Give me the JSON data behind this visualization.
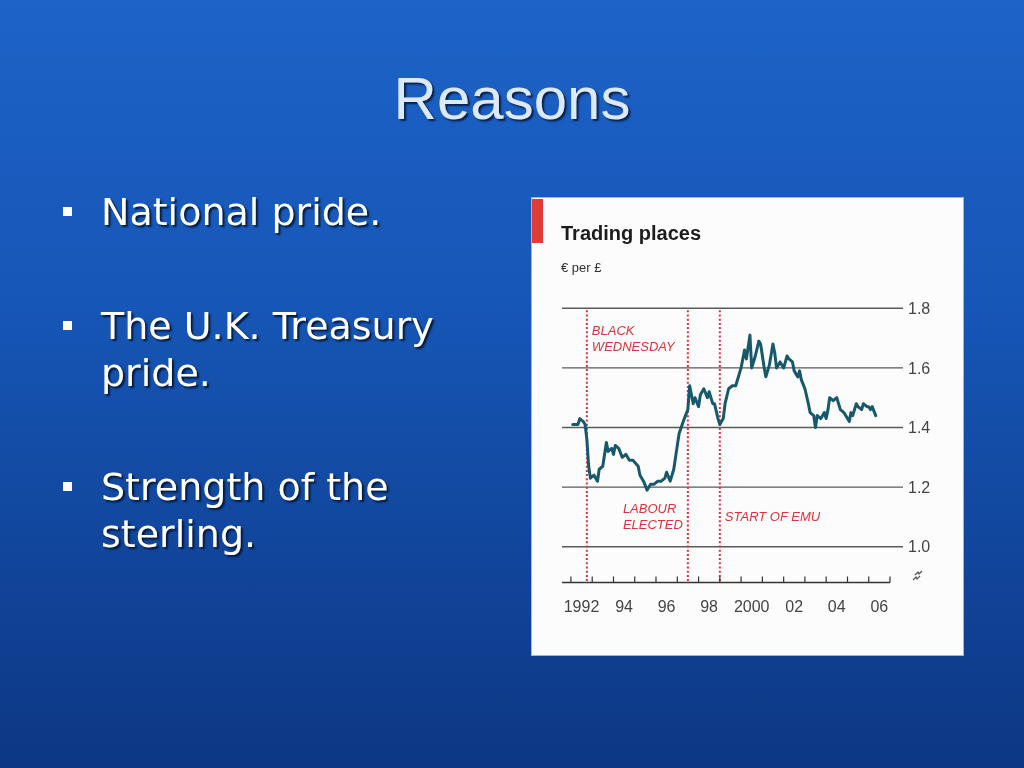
{
  "chart_data": {
    "type": "line",
    "title": "Trading places",
    "subtitle": "€ per £",
    "x": [
      "1992-02",
      "1992-05",
      "1992-06",
      "1992-08",
      "1992-09",
      "1992-10",
      "1992-11",
      "1992-12",
      "1993-02",
      "1993-04",
      "1993-05",
      "1993-07",
      "1993-09",
      "1993-10",
      "1993-12",
      "1994-01",
      "1994-02",
      "1994-04",
      "1994-06",
      "1994-08",
      "1994-10",
      "1994-12",
      "1995-03",
      "1995-04",
      "1995-06",
      "1995-08",
      "1995-10",
      "1995-12",
      "1996-02",
      "1996-04",
      "1996-06",
      "1996-07",
      "1996-09",
      "1996-11",
      "1997-01",
      "1997-02",
      "1997-05",
      "1997-07",
      "1997-08",
      "1997-10",
      "1997-11",
      "1998-01",
      "1998-02",
      "1998-04",
      "1998-06",
      "1998-07",
      "1998-09",
      "1998-10",
      "1998-12",
      "1999-01",
      "1999-03",
      "1999-04",
      "1999-06",
      "1999-08",
      "1999-10",
      "1999-12",
      "2000-01",
      "2000-03",
      "2000-04",
      "2000-06",
      "2000-07",
      "2000-09",
      "2000-11",
      "2000-12",
      "2001-02",
      "2001-03",
      "2001-05",
      "2001-07",
      "2001-08",
      "2001-09",
      "2001-11",
      "2002-01",
      "2002-03",
      "2002-04",
      "2002-06",
      "2002-07",
      "2002-09",
      "2002-10",
      "2002-11",
      "2003-01",
      "2003-03",
      "2003-04",
      "2003-06",
      "2003-07",
      "2003-08",
      "2003-10",
      "2003-12",
      "2004-01",
      "2004-02",
      "2004-03",
      "2004-05",
      "2004-07",
      "2004-08",
      "2004-09",
      "2004-11",
      "2004-12",
      "2005-02",
      "2005-03",
      "2005-04",
      "2005-06",
      "2005-07",
      "2005-09",
      "2005-10",
      "2005-12",
      "2006-01",
      "2006-02",
      "2006-03",
      "2006-05"
    ],
    "values": [
      1.41,
      1.41,
      1.43,
      1.42,
      1.41,
      1.36,
      1.27,
      1.23,
      1.24,
      1.22,
      1.26,
      1.27,
      1.35,
      1.32,
      1.33,
      1.31,
      1.34,
      1.33,
      1.3,
      1.31,
      1.29,
      1.29,
      1.27,
      1.24,
      1.22,
      1.19,
      1.21,
      1.21,
      1.22,
      1.22,
      1.23,
      1.25,
      1.22,
      1.26,
      1.34,
      1.38,
      1.43,
      1.46,
      1.54,
      1.48,
      1.5,
      1.47,
      1.51,
      1.53,
      1.5,
      1.52,
      1.48,
      1.48,
      1.43,
      1.41,
      1.43,
      1.48,
      1.53,
      1.54,
      1.54,
      1.58,
      1.6,
      1.66,
      1.63,
      1.71,
      1.6,
      1.64,
      1.69,
      1.68,
      1.6,
      1.57,
      1.61,
      1.68,
      1.65,
      1.6,
      1.62,
      1.6,
      1.64,
      1.63,
      1.62,
      1.59,
      1.57,
      1.59,
      1.56,
      1.53,
      1.48,
      1.45,
      1.44,
      1.4,
      1.44,
      1.43,
      1.45,
      1.43,
      1.46,
      1.5,
      1.49,
      1.5,
      1.48,
      1.46,
      1.45,
      1.44,
      1.42,
      1.45,
      1.44,
      1.48,
      1.47,
      1.46,
      1.48,
      1.47,
      1.47,
      1.46,
      1.47,
      1.44
    ],
    "color": "#17596b",
    "xlim": [
      "1991-08",
      "2007-01"
    ],
    "xticks": [
      {
        "value": "1992",
        "label": null
      },
      {
        "value": "1993",
        "label": null
      },
      {
        "value": "1994",
        "label": null
      },
      {
        "value": "1995",
        "label": null
      },
      {
        "value": "1996",
        "label": null
      },
      {
        "value": "1997",
        "label": null
      },
      {
        "value": "1998",
        "label": null
      },
      {
        "value": "1999",
        "label": null
      },
      {
        "value": "2000",
        "label": null
      },
      {
        "value": "2001",
        "label": null
      },
      {
        "value": "2002",
        "label": null
      },
      {
        "value": "2003",
        "label": null
      },
      {
        "value": "2004",
        "label": null
      },
      {
        "value": "2005",
        "label": null
      },
      {
        "value": "2006",
        "label": null
      },
      {
        "value": "2007",
        "label": null
      },
      {
        "value": "1992-07",
        "label": "1992"
      },
      {
        "value": "1994-07",
        "label": "94"
      },
      {
        "value": "1996-07",
        "label": "96"
      },
      {
        "value": "1998-07",
        "label": "98"
      },
      {
        "value": "2000-07",
        "label": "2000"
      },
      {
        "value": "2002-07",
        "label": "02"
      },
      {
        "value": "2004-07",
        "label": "04"
      },
      {
        "value": "2006-07",
        "label": "06"
      }
    ],
    "ylim": [
      0.88,
      1.8
    ],
    "yticks": [
      {
        "value": 1,
        "label": "1.0"
      },
      1.2,
      1.4,
      1.6,
      1.8
    ],
    "grid": "y",
    "ref_lines": [
      {
        "axis": "x",
        "value": "1992-10",
        "label": "BLACK\nWEDNESDAY",
        "color": "#d9343b",
        "line_style": "dotted"
      },
      {
        "axis": "x",
        "value": "1997-07",
        "label": "LABOUR\nELECTED",
        "color": "#d9343b",
        "line_style": "dotted"
      },
      {
        "axis": "x",
        "value": "1999-01",
        "label": "START OF EMU",
        "color": "#d9343b",
        "line_style": "dotted"
      }
    ],
    "annotations": [
      "Reasons",
      "National pride.",
      "The U.K. Treasury pride.",
      "Strength of the sterling."
    ]
  }
}
